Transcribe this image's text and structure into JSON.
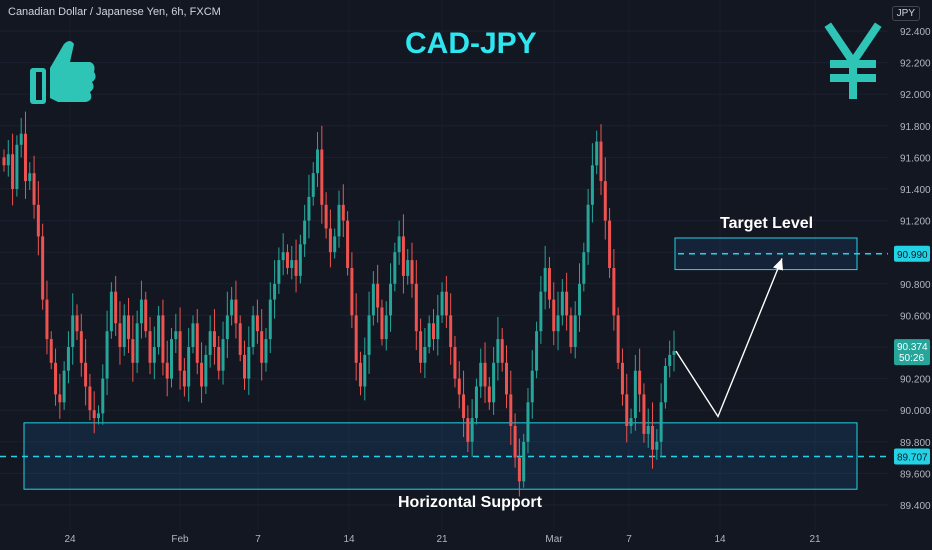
{
  "header": {
    "symbol_line": "Canadian Dollar / Japanese Yen, 6h, FXCM",
    "currency": "JPY"
  },
  "chart_data": {
    "type": "candlestick",
    "title": "CAD-JPY",
    "ylim": [
      89.3,
      92.5
    ],
    "y_ticks": [
      "92.400",
      "92.200",
      "92.000",
      "91.800",
      "91.600",
      "91.400",
      "91.200",
      "91.000",
      "90.800",
      "90.600",
      "90.400",
      "90.200",
      "90.000",
      "89.800",
      "89.600",
      "89.400"
    ],
    "x_ticks": [
      "24",
      "Feb",
      "7",
      "14",
      "21",
      "Mar",
      "7",
      "14",
      "21"
    ],
    "current_price": "90.374",
    "countdown": "50:26",
    "levels": [
      {
        "label": "Target Level",
        "price": 90.99,
        "price_text": "90.990",
        "zone": [
          90.89,
          91.09
        ]
      },
      {
        "label": "Horizontal Support",
        "price": 89.707,
        "price_text": "89.707",
        "zone": [
          89.5,
          89.92
        ]
      }
    ],
    "closes": [
      91.55,
      91.62,
      91.4,
      91.68,
      91.75,
      91.45,
      91.5,
      91.3,
      91.1,
      90.7,
      90.45,
      90.3,
      90.1,
      90.05,
      90.25,
      90.4,
      90.6,
      90.5,
      90.3,
      90.15,
      90.0,
      89.95,
      89.98,
      90.2,
      90.5,
      90.75,
      90.55,
      90.4,
      90.6,
      90.45,
      90.3,
      90.55,
      90.7,
      90.5,
      90.3,
      90.4,
      90.6,
      90.3,
      90.2,
      90.45,
      90.5,
      90.25,
      90.15,
      90.4,
      90.55,
      90.3,
      90.15,
      90.35,
      90.5,
      90.4,
      90.25,
      90.45,
      90.6,
      90.7,
      90.55,
      90.35,
      90.2,
      90.4,
      90.6,
      90.5,
      90.3,
      90.45,
      90.7,
      90.8,
      90.95,
      91.0,
      90.9,
      90.95,
      90.85,
      91.05,
      91.2,
      91.35,
      91.5,
      91.65,
      91.3,
      91.15,
      91.0,
      91.1,
      91.3,
      91.2,
      90.9,
      90.6,
      90.3,
      90.15,
      90.35,
      90.6,
      90.8,
      90.65,
      90.45,
      90.6,
      90.8,
      91.0,
      91.1,
      90.85,
      90.95,
      90.8,
      90.5,
      90.3,
      90.4,
      90.55,
      90.45,
      90.6,
      90.75,
      90.6,
      90.4,
      90.2,
      90.1,
      89.95,
      89.8,
      89.95,
      90.15,
      90.3,
      90.15,
      90.05,
      90.3,
      90.45,
      90.3,
      90.1,
      89.9,
      89.7,
      89.55,
      89.8,
      90.05,
      90.25,
      90.5,
      90.75,
      90.9,
      90.7,
      90.5,
      90.6,
      90.75,
      90.6,
      90.4,
      90.6,
      90.8,
      91.0,
      91.3,
      91.55,
      91.7,
      91.45,
      91.2,
      90.9,
      90.6,
      90.3,
      90.1,
      89.9,
      89.95,
      90.25,
      90.1,
      89.85,
      89.9,
      89.75,
      89.8,
      90.05,
      90.28,
      90.35,
      90.374
    ]
  }
}
